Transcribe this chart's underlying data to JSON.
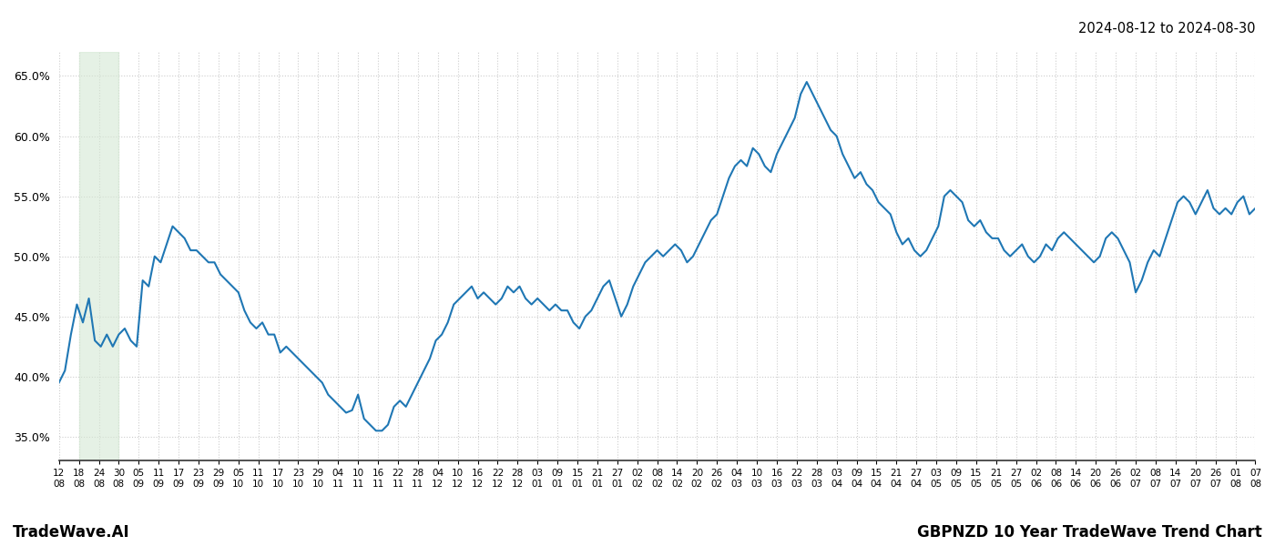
{
  "title_top_right": "2024-08-12 to 2024-08-30",
  "title_bottom_left": "TradeWave.AI",
  "title_bottom_right": "GBPNZD 10 Year TradeWave Trend Chart",
  "line_color": "#1f77b4",
  "shaded_region_color": "#d5e8d4",
  "shaded_region_alpha": 0.6,
  "ylim": [
    33.0,
    67.0
  ],
  "yticks": [
    35.0,
    40.0,
    45.0,
    50.0,
    55.0,
    60.0,
    65.0
  ],
  "grid_color": "#cccccc",
  "background_color": "#ffffff",
  "x_tick_labels": [
    "08-12",
    "08-18",
    "08-24",
    "08-30",
    "09-05",
    "09-11",
    "09-17",
    "09-23",
    "09-29",
    "10-05",
    "10-11",
    "10-17",
    "10-23",
    "10-29",
    "11-04",
    "11-10",
    "11-16",
    "11-22",
    "11-28",
    "12-04",
    "12-10",
    "12-16",
    "12-22",
    "12-28",
    "01-03",
    "01-09",
    "01-15",
    "01-21",
    "01-27",
    "02-02",
    "02-08",
    "02-14",
    "02-20",
    "02-26",
    "03-04",
    "03-10",
    "03-16",
    "03-22",
    "03-28",
    "04-03",
    "04-09",
    "04-15",
    "04-21",
    "04-27",
    "05-03",
    "05-09",
    "05-15",
    "05-21",
    "05-27",
    "06-02",
    "06-08",
    "06-14",
    "06-20",
    "06-26",
    "07-02",
    "07-08",
    "07-14",
    "07-20",
    "07-26",
    "08-01",
    "08-07"
  ],
  "shaded_x_start_label": "08-18",
  "shaded_x_end_label": "08-30",
  "line_width": 1.5,
  "values": [
    39.5,
    40.5,
    43.5,
    46.0,
    44.5,
    46.5,
    43.0,
    42.5,
    43.5,
    42.5,
    43.5,
    44.0,
    43.0,
    42.5,
    48.0,
    47.5,
    50.0,
    49.5,
    51.0,
    52.5,
    52.0,
    51.5,
    50.5,
    50.5,
    50.0,
    49.5,
    49.5,
    48.5,
    48.0,
    47.5,
    47.0,
    45.5,
    44.5,
    44.0,
    44.5,
    43.5,
    43.5,
    42.0,
    42.5,
    42.0,
    41.5,
    41.0,
    40.5,
    40.0,
    39.5,
    38.5,
    38.0,
    37.5,
    37.0,
    37.2,
    38.5,
    36.5,
    36.0,
    35.5,
    35.5,
    36.0,
    37.5,
    38.0,
    37.5,
    38.5,
    39.5,
    40.5,
    41.5,
    43.0,
    43.5,
    44.5,
    46.0,
    46.5,
    47.0,
    47.5,
    46.5,
    47.0,
    46.5,
    46.0,
    46.5,
    47.5,
    47.0,
    47.5,
    46.5,
    46.0,
    46.5,
    46.0,
    45.5,
    46.0,
    45.5,
    45.5,
    44.5,
    44.0,
    45.0,
    45.5,
    46.5,
    47.5,
    48.0,
    46.5,
    45.0,
    46.0,
    47.5,
    48.5,
    49.5,
    50.0,
    50.5,
    50.0,
    50.5,
    51.0,
    50.5,
    49.5,
    50.0,
    51.0,
    52.0,
    53.0,
    53.5,
    55.0,
    56.5,
    57.5,
    58.0,
    57.5,
    59.0,
    58.5,
    57.5,
    57.0,
    58.5,
    59.5,
    60.5,
    61.5,
    63.5,
    64.5,
    63.5,
    62.5,
    61.5,
    60.5,
    60.0,
    58.5,
    57.5,
    56.5,
    57.0,
    56.0,
    55.5,
    54.5,
    54.0,
    53.5,
    52.0,
    51.0,
    51.5,
    50.5,
    50.0,
    50.5,
    51.5,
    52.5,
    55.0,
    55.5,
    55.0,
    54.5,
    53.0,
    52.5,
    53.0,
    52.0,
    51.5,
    51.5,
    50.5,
    50.0,
    50.5,
    51.0,
    50.0,
    49.5,
    50.0,
    51.0,
    50.5,
    51.5,
    52.0,
    51.5,
    51.0,
    50.5,
    50.0,
    49.5,
    50.0,
    51.5,
    52.0,
    51.5,
    50.5,
    49.5,
    47.0,
    48.0,
    49.5,
    50.5,
    50.0,
    51.5,
    53.0,
    54.5,
    55.0,
    54.5,
    53.5,
    54.5,
    55.5,
    54.0,
    53.5,
    54.0,
    53.5,
    54.5,
    55.0,
    53.5,
    54.0
  ]
}
